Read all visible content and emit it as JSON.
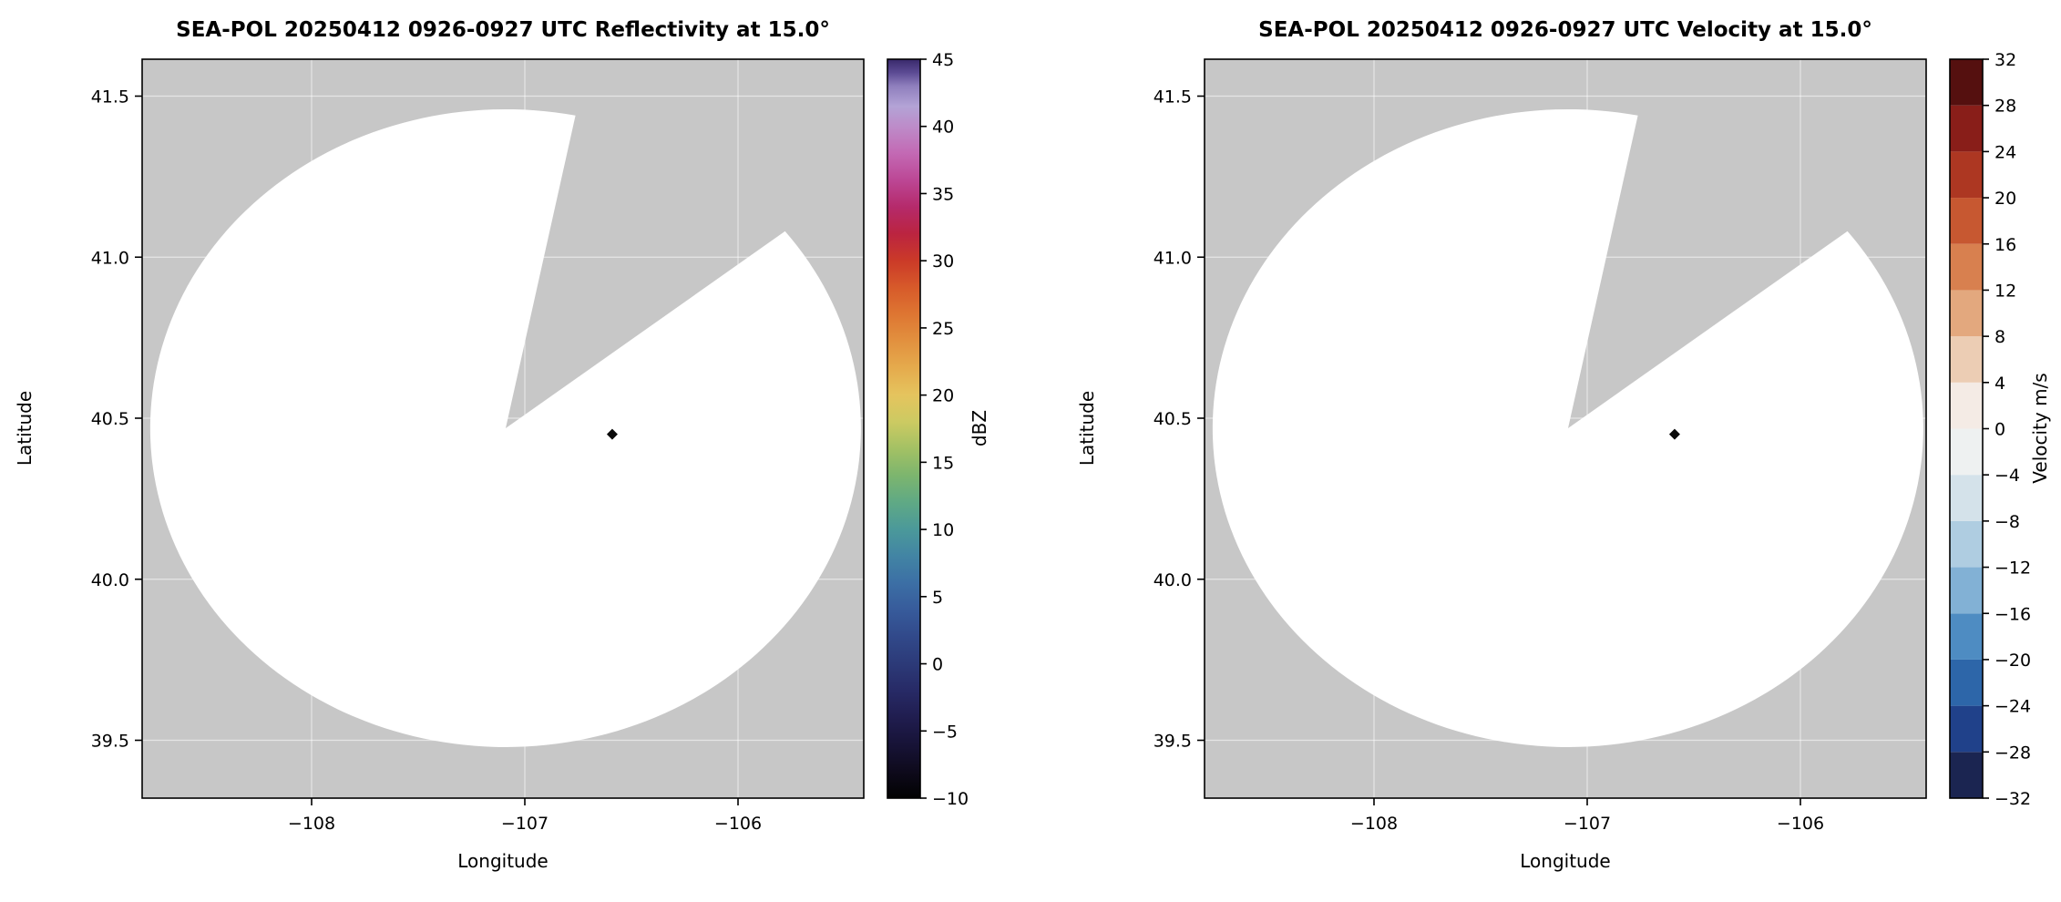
{
  "figure": {
    "background": "#ffffff",
    "plot_background_no_data": "#c7c7c7",
    "scanned_area_fill": "#ffffff"
  },
  "chart_data": [
    {
      "type": "heatmap",
      "variant": "radar-ppi",
      "title": "SEA-POL 20250412 0926-0927 UTC Reflectivity at 15.0°",
      "field": "Reflectivity",
      "elevation_deg": "15.0",
      "time_utc": "20250412 0926-0927",
      "radar": "SEA-POL",
      "xlabel": "Longitude",
      "ylabel": "Latitude",
      "xlim": [
        -108.8,
        -105.41
      ],
      "ylim": [
        39.32,
        41.62
      ],
      "xticks": [
        -108,
        -107,
        -106
      ],
      "yticks": [
        41.5,
        41.0,
        40.5,
        40.0,
        39.5
      ],
      "grid": true,
      "coverage": {
        "center_lon": -107.09,
        "center_lat": 40.47,
        "radius_lon_deg": 1.67,
        "radius_lat_deg": 0.99,
        "blanked_sector_azimuth_deg": [
          13,
          55
        ],
        "scanned_fill": "#ffffff",
        "no_data_fill": "#c7c7c7"
      },
      "echoes": [
        {
          "lon": -106.59,
          "lat": 40.45,
          "color": "#0a0a0a"
        }
      ],
      "colorbar": {
        "label": "dBZ",
        "orientation": "vertical",
        "style": "continuous",
        "min": -10,
        "max": 45,
        "ticks": [
          45,
          40,
          35,
          30,
          25,
          20,
          15,
          10,
          5,
          0,
          -5,
          -10
        ],
        "stops": [
          {
            "v": -10,
            "c": "#020202"
          },
          {
            "v": -8,
            "c": "#0e0a1c"
          },
          {
            "v": -6,
            "c": "#171337"
          },
          {
            "v": -4,
            "c": "#201d4f"
          },
          {
            "v": -2,
            "c": "#272a66"
          },
          {
            "v": 0,
            "c": "#2c3a78"
          },
          {
            "v": 2,
            "c": "#31498a"
          },
          {
            "v": 4,
            "c": "#375b9b"
          },
          {
            "v": 6,
            "c": "#3c6fa5"
          },
          {
            "v": 8,
            "c": "#4284a4"
          },
          {
            "v": 10,
            "c": "#4b999a"
          },
          {
            "v": 12,
            "c": "#5fa985"
          },
          {
            "v": 14,
            "c": "#7cb56e"
          },
          {
            "v": 16,
            "c": "#a3c164"
          },
          {
            "v": 18,
            "c": "#ccca62"
          },
          {
            "v": 20,
            "c": "#e5c45e"
          },
          {
            "v": 22,
            "c": "#e5ab4d"
          },
          {
            "v": 24,
            "c": "#e2913f"
          },
          {
            "v": 26,
            "c": "#de7632"
          },
          {
            "v": 28,
            "c": "#d75a2a"
          },
          {
            "v": 30,
            "c": "#cb3a28"
          },
          {
            "v": 32,
            "c": "#bb2440"
          },
          {
            "v": 34,
            "c": "#b52a6b"
          },
          {
            "v": 36,
            "c": "#bc4795"
          },
          {
            "v": 38,
            "c": "#c369b4"
          },
          {
            "v": 40,
            "c": "#bd8cc9"
          },
          {
            "v": 41.5,
            "c": "#b3a3d6"
          },
          {
            "v": 43,
            "c": "#8f7fbd"
          },
          {
            "v": 44,
            "c": "#5c4b94"
          },
          {
            "v": 45,
            "c": "#39296b"
          }
        ]
      }
    },
    {
      "type": "heatmap",
      "variant": "radar-ppi",
      "title": "SEA-POL 20250412 0926-0927 UTC Velocity at 15.0°",
      "field": "Velocity",
      "elevation_deg": "15.0",
      "time_utc": "20250412 0926-0927",
      "radar": "SEA-POL",
      "xlabel": "Longitude",
      "ylabel": "Latitude",
      "xlim": [
        -108.8,
        -105.41
      ],
      "ylim": [
        39.32,
        41.62
      ],
      "xticks": [
        -108,
        -107,
        -106
      ],
      "yticks": [
        41.5,
        41.0,
        40.5,
        40.0,
        39.5
      ],
      "grid": true,
      "coverage": {
        "center_lon": -107.09,
        "center_lat": 40.47,
        "radius_lon_deg": 1.67,
        "radius_lat_deg": 0.99,
        "blanked_sector_azimuth_deg": [
          13,
          55
        ],
        "scanned_fill": "#ffffff",
        "no_data_fill": "#c7c7c7"
      },
      "echoes": [
        {
          "lon": -106.59,
          "lat": 40.45,
          "color": "#0a0a0a"
        }
      ],
      "colorbar": {
        "label": "Velocity m/s",
        "orientation": "vertical",
        "style": "discrete",
        "min": -32,
        "max": 32,
        "ticks": [
          32,
          28,
          24,
          20,
          16,
          12,
          8,
          4,
          0,
          -4,
          -8,
          -12,
          -16,
          -20,
          -24,
          -28,
          -32
        ],
        "segments": [
          {
            "from": -32,
            "to": -28,
            "c": "#1b2551"
          },
          {
            "from": -28,
            "to": -24,
            "c": "#20418a"
          },
          {
            "from": -24,
            "to": -20,
            "c": "#2d66a9"
          },
          {
            "from": -20,
            "to": -16,
            "c": "#4e8cc2"
          },
          {
            "from": -16,
            "to": -12,
            "c": "#82b1d5"
          },
          {
            "from": -12,
            "to": -8,
            "c": "#afcde1"
          },
          {
            "from": -8,
            "to": -4,
            "c": "#d4e2ea"
          },
          {
            "from": -4,
            "to": 0,
            "c": "#eef1f1"
          },
          {
            "from": 0,
            "to": 4,
            "c": "#f4ebe5"
          },
          {
            "from": 4,
            "to": 8,
            "c": "#eccdb4"
          },
          {
            "from": 8,
            "to": 12,
            "c": "#e3a87e"
          },
          {
            "from": 12,
            "to": 16,
            "c": "#d8804f"
          },
          {
            "from": 16,
            "to": 20,
            "c": "#c75831"
          },
          {
            "from": 20,
            "to": 24,
            "c": "#ad3722"
          },
          {
            "from": 24,
            "to": 28,
            "c": "#891e19"
          },
          {
            "from": 28,
            "to": 32,
            "c": "#55100f"
          }
        ]
      }
    }
  ]
}
